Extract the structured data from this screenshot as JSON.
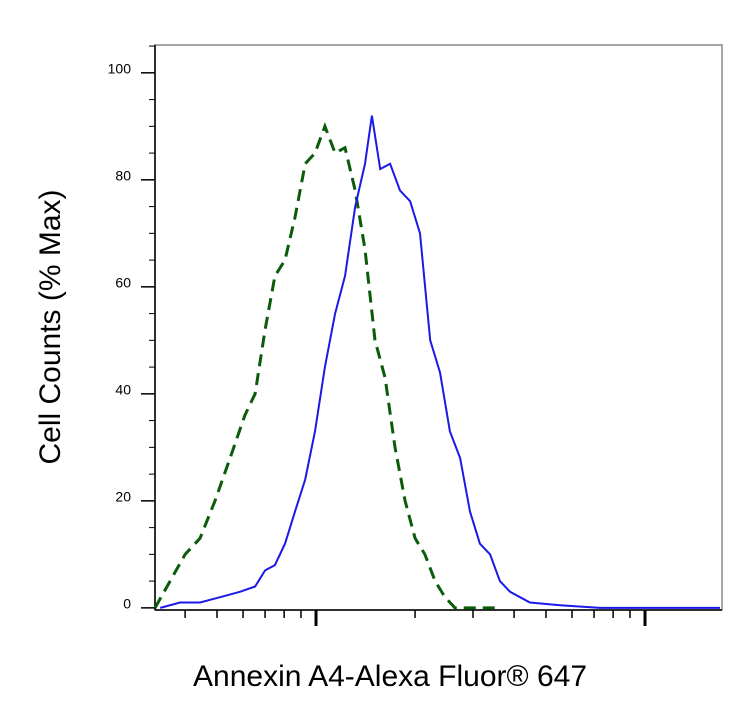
{
  "chart_data": {
    "type": "line",
    "xlabel": "Annexin A4-Alexa Fluor® 647",
    "ylabel": "Cell Counts (% Max)",
    "xscale": "log",
    "xlim": [
      324,
      17140
    ],
    "xticks": [
      400,
      500,
      600,
      700,
      800,
      900,
      1000,
      2000,
      3000,
      4000,
      5000,
      6000,
      7000,
      8000,
      9000,
      10000
    ],
    "ylim": [
      -0.4,
      105.2
    ],
    "yticks": [
      0,
      20,
      40,
      60,
      80,
      100
    ],
    "yminorticks": [
      5,
      10,
      15,
      25,
      30,
      35,
      45,
      50,
      55,
      65,
      70,
      75,
      85,
      90,
      95,
      105
    ],
    "series": [
      {
        "color": "#0a5c0a",
        "dashed": true,
        "x": [
          324,
          360,
          400,
          444,
          493,
          548,
          608,
          653,
          700,
          750,
          805,
          863,
          927,
          993,
          1064,
          1143,
          1225,
          1315,
          1409,
          1511,
          1622,
          1738,
          1865,
          2000,
          2143,
          2301,
          2466,
          2645,
          3622
        ],
        "values": [
          0,
          5,
          10,
          13,
          20,
          28,
          36,
          40,
          52,
          62,
          65,
          73,
          83,
          85,
          90,
          85,
          86,
          78,
          67,
          50,
          43,
          30,
          20,
          13,
          10,
          5,
          2,
          0,
          0
        ]
      },
      {
        "color": "#1a1ae6",
        "dashed": false,
        "x": [
          336,
          386,
          444,
          511,
          587,
          653,
          700,
          750,
          805,
          863,
          927,
          993,
          1064,
          1143,
          1225,
          1315,
          1409,
          1479,
          1567,
          1679,
          1800,
          1932,
          2070,
          2223,
          2382,
          2553,
          2742,
          2938,
          3148,
          3381,
          3622,
          3890,
          4467,
          5521,
          7295,
          16904
        ],
        "values": [
          0,
          1,
          1,
          2,
          3,
          4,
          7,
          8,
          12,
          18,
          24,
          33,
          45,
          55,
          62,
          75,
          83,
          92,
          82,
          83,
          78,
          76,
          70,
          50,
          44,
          33,
          28,
          18,
          12,
          10,
          5,
          3,
          1,
          0.5,
          0,
          0
        ]
      }
    ]
  }
}
